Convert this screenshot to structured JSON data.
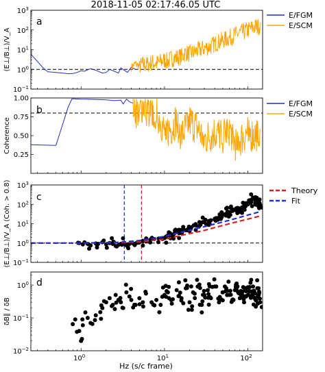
{
  "title": "2018-11-05 02:17:46.05 UTC",
  "xlabel": "Hz (s/c frame)",
  "x_ticks": [
    {
      "v": 1,
      "b": "10",
      "e": "0"
    },
    {
      "v": 10,
      "b": "10",
      "e": "1"
    },
    {
      "v": 100,
      "b": "10",
      "e": "2"
    }
  ],
  "chart_data": [
    {
      "type": "line",
      "panel": "a",
      "ylabel": "(E⊥/B⊥)/V_A",
      "x_scale": "log",
      "y_scale": "log",
      "xlim": [
        0.25,
        150
      ],
      "ylim": [
        0.1,
        1000
      ],
      "y_ticks": [
        {
          "v": 0.1,
          "b": "10",
          "e": "−1"
        },
        {
          "v": 1,
          "b": "10",
          "e": "0"
        },
        {
          "v": 10,
          "b": "10",
          "e": "1"
        },
        {
          "v": 100,
          "b": "10",
          "e": "2"
        },
        {
          "v": 1000,
          "b": "10",
          "e": "3"
        }
      ],
      "reference_line": 1,
      "legend": {
        "position": "right",
        "entries": [
          "E/FGM",
          "E/SCM"
        ]
      },
      "series": [
        {
          "name": "E/FGM",
          "color": "#1f2fbf",
          "x": [
            0.25,
            0.3,
            0.35,
            0.4,
            0.5,
            0.6,
            0.7,
            0.8,
            0.9,
            1.0,
            1.1,
            1.3,
            1.5,
            1.8,
            2.0,
            2.2,
            2.5,
            2.8,
            3.0,
            3.3,
            3.6,
            4.0,
            4.5
          ],
          "y": [
            6,
            2.5,
            1.2,
            0.75,
            0.7,
            0.65,
            0.6,
            0.62,
            0.7,
            0.85,
            0.8,
            1.1,
            0.9,
            0.65,
            0.7,
            1.0,
            0.8,
            0.65,
            1.2,
            0.9,
            0.7,
            1.3,
            1.0
          ]
        },
        {
          "name": "E/SCM",
          "color": "#ffa500",
          "x": [
            4.0,
            4.5,
            5.0,
            5.5,
            6.0,
            7.0,
            8.0,
            9.0,
            10,
            11,
            12,
            14,
            16,
            18,
            20,
            25,
            30,
            35,
            40,
            45,
            50,
            60,
            70,
            80,
            90,
            100,
            110,
            120,
            130,
            140
          ],
          "y": [
            1.3,
            2.0,
            1.4,
            1.8,
            1.7,
            2.2,
            2.0,
            2.5,
            3.0,
            2.5,
            3.5,
            4.0,
            4.5,
            7.0,
            6.0,
            9.0,
            12,
            14,
            20,
            25,
            30,
            40,
            55,
            70,
            80,
            100,
            120,
            140,
            150,
            160
          ],
          "noise": true
        }
      ]
    },
    {
      "type": "line",
      "panel": "b",
      "ylabel": "Coherence",
      "x_scale": "log",
      "xlim": [
        0.25,
        150
      ],
      "ylim": [
        0.0,
        1.0
      ],
      "y_ticks": [
        {
          "v": 0.25,
          "t": "0.25"
        },
        {
          "v": 0.5,
          "t": "0.50"
        },
        {
          "v": 0.75,
          "t": "0.75"
        },
        {
          "v": 1.0,
          "t": "1.00"
        }
      ],
      "reference_line": 0.8,
      "legend": {
        "position": "right",
        "entries": [
          "E/FGM",
          "E/SCM"
        ]
      },
      "series": [
        {
          "name": "E/FGM",
          "color": "#1f2fbf",
          "x": [
            0.25,
            0.5,
            0.7,
            0.78,
            1.0,
            1.5,
            2.0,
            2.5,
            3.0,
            3.2,
            3.5,
            3.8,
            4.2
          ],
          "y": [
            0.38,
            0.37,
            0.88,
            0.99,
            0.985,
            0.98,
            0.975,
            0.965,
            0.97,
            0.92,
            0.985,
            0.95,
            0.93
          ]
        },
        {
          "name": "E/SCM",
          "color": "#ffa500",
          "x": [
            4.2,
            4.5,
            5.0,
            5.5,
            6.0,
            7.0,
            8.0,
            9.0,
            10,
            12,
            14,
            16,
            20,
            25,
            30,
            40,
            50,
            60,
            70,
            80,
            100,
            120,
            140
          ],
          "y": [
            0.93,
            0.85,
            0.8,
            0.92,
            0.86,
            0.78,
            0.82,
            0.7,
            0.55,
            0.6,
            0.72,
            0.5,
            0.7,
            0.6,
            0.45,
            0.55,
            0.5,
            0.6,
            0.4,
            0.45,
            0.55,
            0.5,
            0.6
          ],
          "noise": true
        }
      ]
    },
    {
      "type": "scatter",
      "panel": "c",
      "ylabel": "(E⊥/B⊥)/V_A (Coh. > 0.8)",
      "x_scale": "log",
      "y_scale": "log",
      "xlim": [
        0.25,
        150
      ],
      "ylim": [
        0.1,
        1000
      ],
      "y_ticks": [
        {
          "v": 0.1,
          "b": "10",
          "e": "−1"
        },
        {
          "v": 1,
          "b": "10",
          "e": "0"
        },
        {
          "v": 10,
          "b": "10",
          "e": "1"
        },
        {
          "v": 100,
          "b": "10",
          "e": "2"
        },
        {
          "v": 1000,
          "b": "10",
          "e": "3"
        }
      ],
      "reference_line": 1,
      "vertical_lines": [
        {
          "x": 3.3,
          "color": "#1f2fdf"
        },
        {
          "x": 5.3,
          "color": "#e02020"
        }
      ],
      "legend": {
        "position": "top-right",
        "entries": [
          "Theory",
          "Fit"
        ]
      },
      "lines": [
        {
          "name": "Theory",
          "color": "#e02020",
          "x": [
            0.25,
            1,
            3,
            5,
            10,
            30,
            60,
            140
          ],
          "y": [
            1.0,
            1.0,
            1.05,
            1.15,
            1.6,
            4.5,
            10,
            25
          ]
        },
        {
          "name": "Fit",
          "color": "#1f2fdf",
          "x": [
            0.25,
            1,
            3,
            5,
            10,
            30,
            60,
            140
          ],
          "y": [
            1.0,
            1.0,
            1.1,
            1.35,
            2.2,
            7,
            15,
            42
          ]
        }
      ],
      "points": {
        "x": [
          0.95,
          1.05,
          1.2,
          1.3,
          1.5,
          1.6,
          1.8,
          2.0,
          2.2,
          2.4,
          2.6,
          2.8,
          3.0,
          3.2,
          3.4,
          3.6,
          3.8,
          4.2,
          4.6,
          5.0,
          5.5,
          6.0,
          6.8,
          7.5,
          8.5,
          10,
          11,
          12,
          13,
          14,
          15,
          17,
          19,
          21,
          24,
          27,
          30,
          33,
          36,
          40,
          44,
          48,
          52,
          56,
          60,
          65,
          70,
          75,
          80,
          85,
          90,
          95,
          100,
          105,
          110,
          115,
          120,
          125,
          130,
          135,
          140
        ],
        "y": [
          1.0,
          0.85,
          0.9,
          0.75,
          0.95,
          0.9,
          1.1,
          0.85,
          1.0,
          0.9,
          0.7,
          0.8,
          0.9,
          1.0,
          0.8,
          0.85,
          0.9,
          0.95,
          1.0,
          1.1,
          1.3,
          1.2,
          1.5,
          1.6,
          1.7,
          1.8,
          2.5,
          2.2,
          3.0,
          4.0,
          3.2,
          5.0,
          4.5,
          6.5,
          8.0,
          10,
          12,
          9,
          15,
          18,
          20,
          25,
          30,
          35,
          40,
          45,
          50,
          55,
          60,
          70,
          80,
          90,
          100,
          120,
          150,
          200,
          180,
          120,
          110,
          100,
          95
        ],
        "noise": true
      }
    },
    {
      "type": "scatter",
      "panel": "d",
      "ylabel": "δB∥ / δB",
      "x_scale": "log",
      "y_scale": "log",
      "xlim": [
        0.25,
        150
      ],
      "ylim": [
        0.01,
        2.5
      ],
      "y_ticks": [
        {
          "v": 0.01,
          "b": "10",
          "e": "−2"
        },
        {
          "v": 0.1,
          "b": "10",
          "e": "−1"
        },
        {
          "v": 1,
          "b": "10",
          "e": "0"
        }
      ],
      "points": {
        "x": [
          0.85,
          0.95,
          1.0,
          1.05,
          1.2,
          1.3,
          1.5,
          1.7,
          1.8,
          2.0,
          2.2,
          2.4,
          2.6,
          2.8,
          3.0,
          3.2,
          3.5,
          3.8,
          4.0,
          4.5,
          5.0,
          5.5,
          6.0,
          7.0,
          8.0,
          9.0,
          10,
          11,
          12,
          14,
          16,
          18,
          20,
          22,
          25,
          28,
          30,
          33,
          36,
          40,
          45,
          50,
          55,
          60,
          65,
          70,
          75,
          80,
          85,
          90,
          95,
          100,
          105,
          110,
          115,
          120,
          125,
          130,
          135,
          140
        ],
        "y": [
          0.09,
          0.04,
          0.02,
          0.06,
          0.1,
          0.07,
          0.12,
          0.15,
          0.2,
          0.3,
          0.4,
          0.25,
          0.5,
          0.35,
          0.3,
          0.2,
          0.6,
          0.45,
          0.35,
          0.25,
          0.4,
          0.3,
          0.55,
          0.3,
          0.35,
          0.25,
          0.5,
          0.6,
          0.35,
          0.7,
          0.4,
          0.8,
          0.3,
          0.6,
          0.9,
          0.25,
          0.5,
          0.7,
          0.4,
          0.9,
          0.3,
          0.6,
          0.8,
          0.5,
          0.35,
          0.7,
          0.9,
          0.4,
          0.6,
          0.3,
          0.8,
          0.5,
          0.65,
          0.45,
          0.9,
          0.6,
          0.35,
          0.8,
          0.5,
          0.3
        ],
        "noise": true
      }
    }
  ],
  "panel_labels": [
    "a",
    "b",
    "c",
    "d"
  ]
}
